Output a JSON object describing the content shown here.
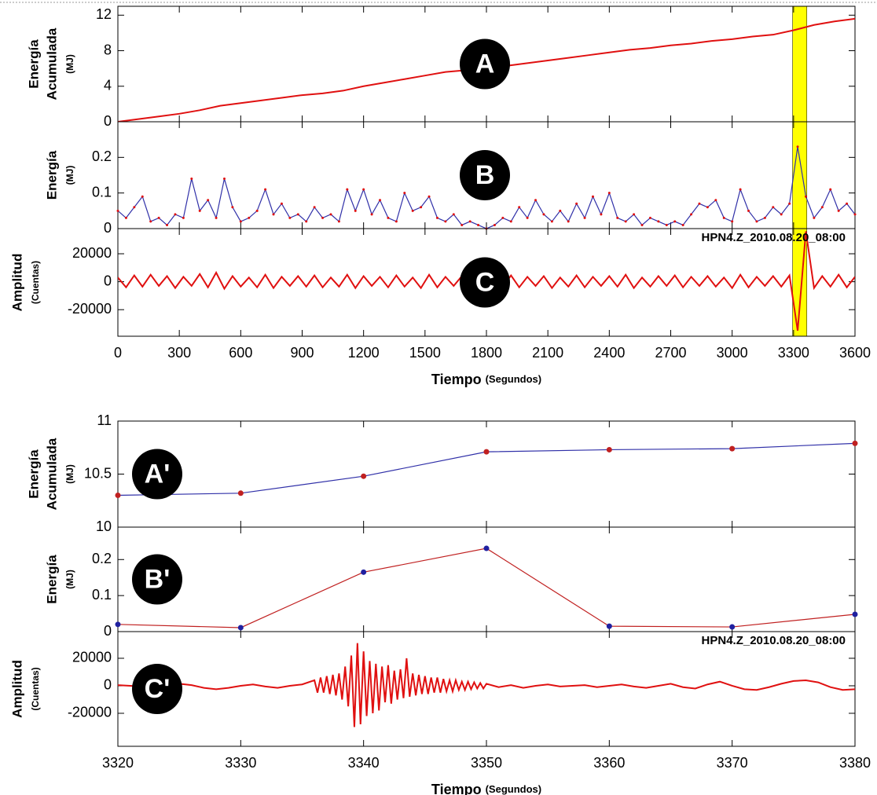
{
  "chart_data": [
    {
      "type": "line",
      "panel_label": "A",
      "ylabel": [
        "Energía",
        "Acumulada"
      ],
      "yunit": "(MJ)",
      "xlim": [
        0,
        3600
      ],
      "xticks": [
        0,
        300,
        600,
        900,
        1200,
        1500,
        1800,
        2100,
        2400,
        2700,
        3000,
        3300,
        3600
      ],
      "ylim": [
        0,
        13
      ],
      "yticks": [
        0,
        4,
        8,
        12
      ],
      "highlight": [
        3295,
        3365
      ],
      "highlight_color": "#ffff00",
      "color": "#e01010",
      "x": [
        0,
        100,
        200,
        300,
        400,
        500,
        600,
        700,
        800,
        900,
        1000,
        1100,
        1200,
        1300,
        1400,
        1500,
        1600,
        1700,
        1800,
        1900,
        2000,
        2100,
        2200,
        2300,
        2400,
        2500,
        2600,
        2700,
        2800,
        2900,
        3000,
        3100,
        3200,
        3300,
        3400,
        3500,
        3600
      ],
      "values": [
        0,
        0.3,
        0.6,
        0.9,
        1.3,
        1.8,
        2.1,
        2.4,
        2.7,
        3,
        3.2,
        3.5,
        4,
        4.4,
        4.8,
        5.2,
        5.6,
        5.8,
        6,
        6.3,
        6.6,
        6.9,
        7.2,
        7.5,
        7.8,
        8.1,
        8.3,
        8.6,
        8.8,
        9.1,
        9.3,
        9.6,
        9.8,
        10.3,
        10.9,
        11.3,
        11.6
      ]
    },
    {
      "type": "line",
      "panel_label": "B",
      "ylabel": [
        "Energía"
      ],
      "yunit": "(MJ)",
      "xlim": [
        0,
        3600
      ],
      "xticks": [
        0,
        300,
        600,
        900,
        1200,
        1500,
        1800,
        2100,
        2400,
        2700,
        3000,
        3300,
        3600
      ],
      "ylim": [
        0,
        0.3
      ],
      "yticks": [
        0,
        0.1,
        0.2
      ],
      "highlight": [
        3295,
        3365
      ],
      "highlight_color": "#ffff00",
      "color": "#3030a8",
      "marker_color": "#e01010",
      "x": [
        0,
        40,
        80,
        120,
        160,
        200,
        240,
        280,
        320,
        360,
        400,
        440,
        480,
        520,
        560,
        600,
        640,
        680,
        720,
        760,
        800,
        840,
        880,
        920,
        960,
        1000,
        1040,
        1080,
        1120,
        1160,
        1200,
        1240,
        1280,
        1320,
        1360,
        1400,
        1440,
        1480,
        1520,
        1560,
        1600,
        1640,
        1680,
        1720,
        1760,
        1800,
        1840,
        1880,
        1920,
        1960,
        2000,
        2040,
        2080,
        2120,
        2160,
        2200,
        2240,
        2280,
        2320,
        2360,
        2400,
        2440,
        2480,
        2520,
        2560,
        2600,
        2640,
        2680,
        2720,
        2760,
        2800,
        2840,
        2880,
        2920,
        2960,
        3000,
        3040,
        3080,
        3120,
        3160,
        3200,
        3240,
        3280,
        3320,
        3360,
        3400,
        3440,
        3480,
        3520,
        3560,
        3600
      ],
      "values": [
        0.05,
        0.03,
        0.06,
        0.09,
        0.02,
        0.03,
        0.01,
        0.04,
        0.03,
        0.14,
        0.05,
        0.08,
        0.03,
        0.14,
        0.06,
        0.02,
        0.03,
        0.05,
        0.11,
        0.04,
        0.07,
        0.03,
        0.04,
        0.02,
        0.06,
        0.03,
        0.04,
        0.02,
        0.11,
        0.05,
        0.11,
        0.04,
        0.08,
        0.03,
        0.02,
        0.1,
        0.05,
        0.06,
        0.09,
        0.03,
        0.02,
        0.04,
        0.01,
        0.02,
        0.01,
        0,
        0.01,
        0.03,
        0.02,
        0.06,
        0.03,
        0.08,
        0.04,
        0.02,
        0.05,
        0.02,
        0.07,
        0.03,
        0.09,
        0.04,
        0.1,
        0.03,
        0.02,
        0.04,
        0.01,
        0.03,
        0.02,
        0.01,
        0.02,
        0.01,
        0.04,
        0.07,
        0.06,
        0.08,
        0.03,
        0.02,
        0.11,
        0.05,
        0.02,
        0.03,
        0.06,
        0.04,
        0.07,
        0.23,
        0.09,
        0.03,
        0.06,
        0.11,
        0.05,
        0.07,
        0.04
      ]
    },
    {
      "type": "line",
      "panel_label": "C",
      "ylabel": [
        "Amplitud"
      ],
      "yunit": "(Cuentas)",
      "annotation": "HPN4.Z_2010.08.20_08:00",
      "xlabel": "Tiempo",
      "xunit": "(Segundos)",
      "xlim": [
        0,
        3600
      ],
      "xticks": [
        0,
        300,
        600,
        900,
        1200,
        1500,
        1800,
        2100,
        2400,
        2700,
        3000,
        3300,
        3600
      ],
      "ylim": [
        -39000,
        38000
      ],
      "yticks": [
        -20000,
        0,
        20000
      ],
      "highlight": [
        3295,
        3365
      ],
      "highlight_color": "#ffff00",
      "color": "#e01010",
      "x": [
        0,
        40,
        80,
        120,
        160,
        200,
        240,
        280,
        320,
        360,
        400,
        440,
        480,
        520,
        560,
        600,
        640,
        680,
        720,
        760,
        800,
        840,
        880,
        920,
        960,
        1000,
        1040,
        1080,
        1120,
        1160,
        1200,
        1240,
        1280,
        1320,
        1360,
        1400,
        1440,
        1480,
        1520,
        1560,
        1600,
        1640,
        1680,
        1720,
        1760,
        1800,
        1840,
        1880,
        1920,
        1960,
        2000,
        2040,
        2080,
        2120,
        2160,
        2200,
        2240,
        2280,
        2320,
        2360,
        2400,
        2440,
        2480,
        2520,
        2560,
        2600,
        2640,
        2680,
        2720,
        2760,
        2800,
        2840,
        2880,
        2920,
        2960,
        3000,
        3040,
        3080,
        3120,
        3160,
        3200,
        3240,
        3280,
        3320,
        3360,
        3400,
        3440,
        3480,
        3520,
        3560,
        3600
      ],
      "values": [
        3000,
        -4000,
        4500,
        -3500,
        5000,
        -3000,
        4000,
        -4500,
        3500,
        -3000,
        5500,
        -4000,
        6500,
        -5000,
        4000,
        -3500,
        3000,
        -4000,
        5000,
        -4500,
        3500,
        -3000,
        4000,
        -3500,
        4500,
        -4000,
        3000,
        -3500,
        5000,
        -4500,
        4000,
        -3000,
        3500,
        -4000,
        4500,
        -3500,
        3000,
        -4500,
        5000,
        -4000,
        3500,
        -3000,
        4000,
        -3500,
        5500,
        -4000,
        3000,
        -3500,
        4500,
        -4000,
        3500,
        -3000,
        4000,
        -4500,
        3000,
        -3500,
        4500,
        -4000,
        3500,
        -3000,
        4000,
        -3500,
        5000,
        -4500,
        3000,
        -3500,
        4000,
        -3000,
        4500,
        -4000,
        3500,
        -3000,
        4000,
        -3500,
        3000,
        -4500,
        5000,
        -4000,
        3500,
        -3000,
        4000,
        -3500,
        4500,
        -35000,
        36000,
        -4500,
        4000,
        -3500,
        5000,
        -4000,
        3500
      ]
    },
    {
      "type": "line",
      "panel_label": "A'",
      "ylabel": [
        "Energía",
        "Acumulada"
      ],
      "yunit": "(MJ)",
      "xlim": [
        3320,
        3380
      ],
      "xticks": [
        3320,
        3330,
        3340,
        3350,
        3360,
        3370,
        3380
      ],
      "ylim": [
        10,
        11
      ],
      "yticks": [
        10,
        10.5,
        11
      ],
      "color": "#3030a8",
      "marker_color": "#c02020",
      "x": [
        3320,
        3330,
        3340,
        3350,
        3360,
        3370,
        3380
      ],
      "values": [
        10.3,
        10.32,
        10.48,
        10.71,
        10.73,
        10.74,
        10.79
      ]
    },
    {
      "type": "line",
      "panel_label": "B'",
      "ylabel": [
        "Energía"
      ],
      "yunit": "(MJ)",
      "xlim": [
        3320,
        3380
      ],
      "xticks": [
        3320,
        3330,
        3340,
        3350,
        3360,
        3370,
        3380
      ],
      "ylim": [
        0,
        0.29
      ],
      "yticks": [
        0,
        0.1,
        0.2
      ],
      "color": "#c02020",
      "marker_color": "#2020a0",
      "x": [
        3320,
        3330,
        3340,
        3350,
        3360,
        3370,
        3380
      ],
      "values": [
        0.02,
        0.011,
        0.165,
        0.231,
        0.015,
        0.013,
        0.048
      ]
    },
    {
      "type": "line",
      "panel_label": "C'",
      "ylabel": [
        "Amplitud"
      ],
      "yunit": "(Cuentas)",
      "annotation": "HPN4.Z_2010.08.20_08:00",
      "xlabel": "Tiempo",
      "xunit": "(Segundos)",
      "xlim": [
        3320,
        3380
      ],
      "xticks": [
        3320,
        3330,
        3340,
        3350,
        3360,
        3370,
        3380
      ],
      "ylim": [
        -44000,
        39400
      ],
      "yticks": [
        -20000,
        0,
        20000
      ],
      "color": "#e01010",
      "x": [
        3320,
        3321,
        3322,
        3323,
        3324,
        3325,
        3326,
        3327,
        3328,
        3329,
        3330,
        3331,
        3332,
        3333,
        3334,
        3335,
        3336,
        3336.25,
        3336.5,
        3336.75,
        3337,
        3337.25,
        3337.5,
        3337.75,
        3338,
        3338.25,
        3338.5,
        3338.75,
        3339,
        3339.25,
        3339.5,
        3339.75,
        3340,
        3340.25,
        3340.5,
        3340.75,
        3341,
        3341.25,
        3341.5,
        3341.75,
        3342,
        3342.25,
        3342.5,
        3342.75,
        3343,
        3343.25,
        3343.5,
        3343.75,
        3344,
        3344.25,
        3344.5,
        3344.75,
        3345,
        3345.25,
        3345.5,
        3345.75,
        3346,
        3346.25,
        3346.5,
        3346.75,
        3347,
        3347.25,
        3347.5,
        3347.75,
        3348,
        3348.25,
        3348.5,
        3348.75,
        3349,
        3349.25,
        3349.5,
        3349.75,
        3350,
        3351,
        3352,
        3353,
        3354,
        3355,
        3356,
        3357,
        3358,
        3359,
        3360,
        3361,
        3362,
        3363,
        3364,
        3365,
        3366,
        3367,
        3368,
        3369,
        3370,
        3371,
        3372,
        3373,
        3374,
        3375,
        3376,
        3377,
        3378,
        3379,
        3380
      ],
      "values": [
        500,
        0,
        -500,
        -2000,
        -500,
        1500,
        500,
        -1500,
        -2500,
        -1500,
        0,
        1000,
        -500,
        -1500,
        0,
        1000,
        4000,
        -5000,
        6000,
        -5000,
        7000,
        -6000,
        8000,
        -7000,
        9000,
        -10000,
        14000,
        -15000,
        22000,
        -30000,
        31000,
        -28000,
        25000,
        -22000,
        18000,
        -20000,
        16000,
        -18000,
        14000,
        -12000,
        15000,
        -13000,
        11000,
        -10000,
        12000,
        -9000,
        20000,
        -8000,
        9000,
        -7000,
        8000,
        -6000,
        7000,
        -6000,
        6000,
        -5000,
        6000,
        -5000,
        5000,
        -4000,
        4000,
        -4000,
        4000,
        -3000,
        3000,
        -3000,
        3000,
        -2500,
        2500,
        -2000,
        2000,
        -2000,
        1500,
        -1000,
        500,
        -1500,
        0,
        1000,
        -500,
        0,
        500,
        -1000,
        0,
        1000,
        -500,
        -1500,
        0,
        1500,
        -1000,
        -2000,
        1000,
        3000,
        0,
        -2500,
        -3000,
        -1000,
        1500,
        3500,
        4000,
        2500,
        -1000,
        -3000,
        -2500
      ]
    }
  ]
}
